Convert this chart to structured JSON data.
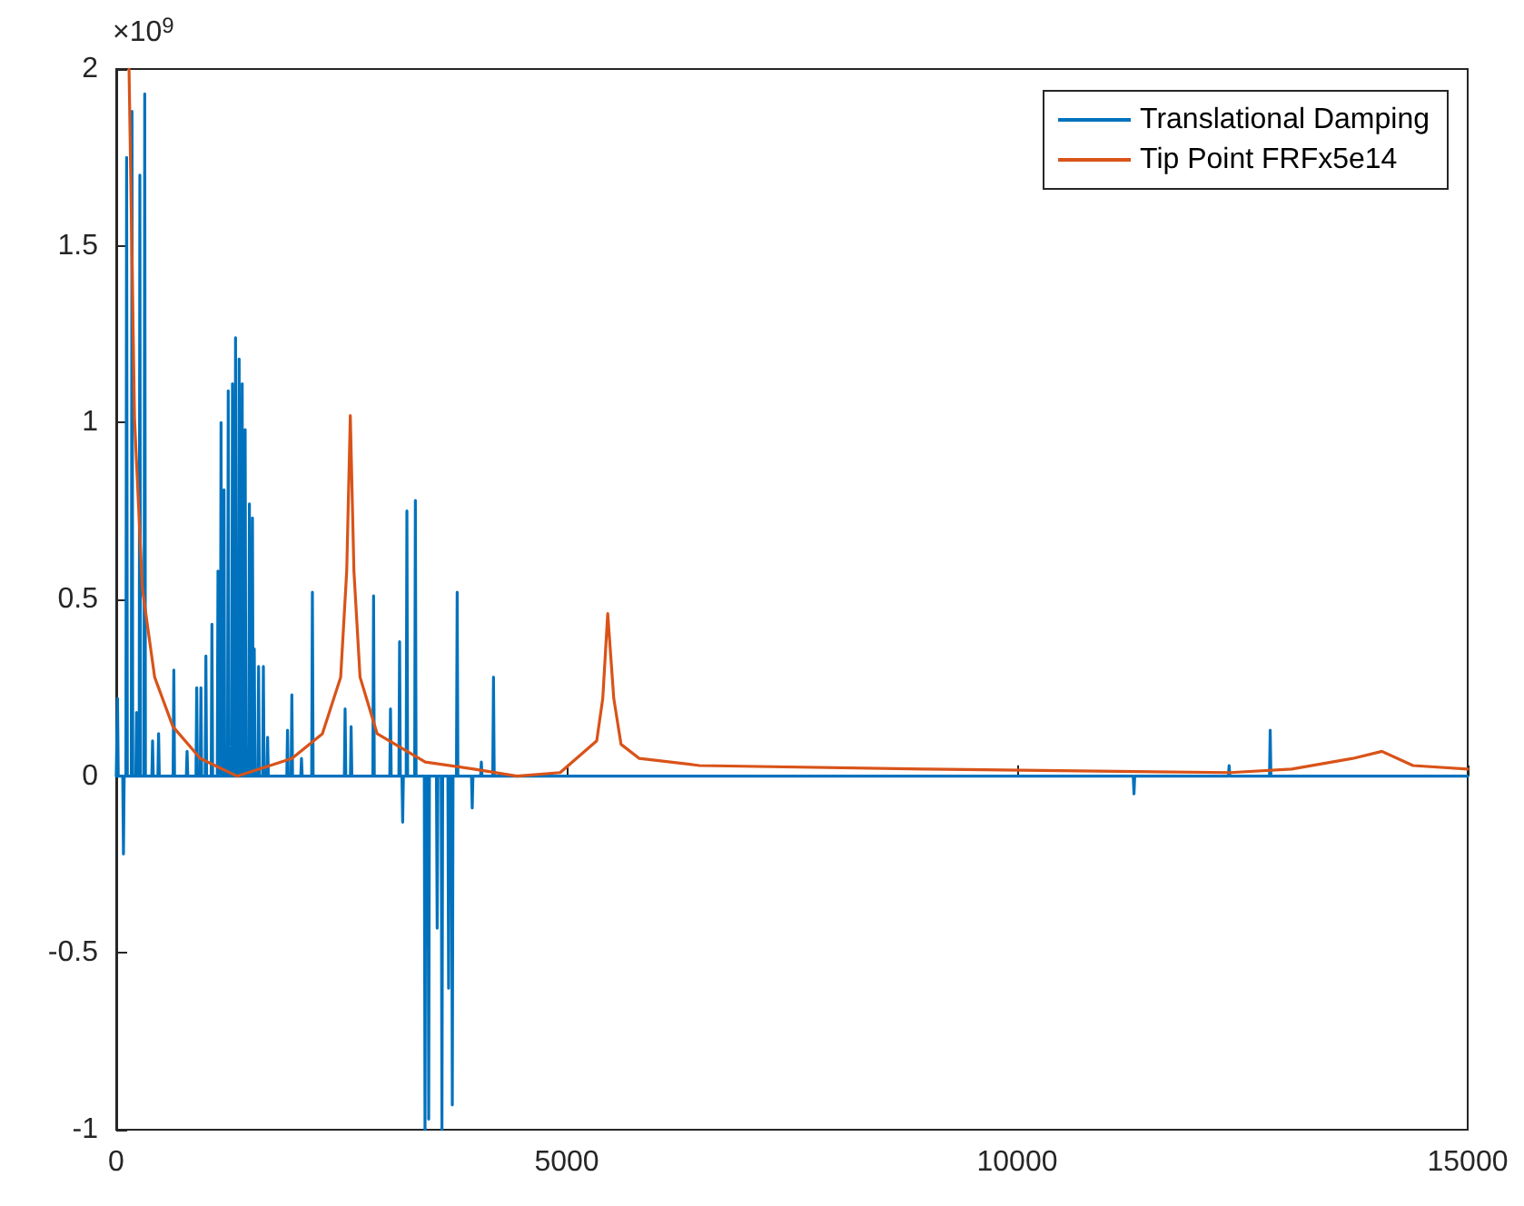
{
  "chart_data": {
    "type": "line",
    "xlim": [
      0,
      15000
    ],
    "xticks": [
      0,
      5000,
      10000,
      15000
    ],
    "ylim": [
      -1,
      2
    ],
    "yticks": [
      -1,
      -0.5,
      0,
      0.5,
      1,
      1.5,
      2
    ],
    "grid": false,
    "legend": "top right",
    "marker": "none",
    "line_style": "solid",
    "annotations": [
      "×10$^{9}$"
    ],
    "series": [
      {
        "name": "Translational Damping",
        "color": "#0072bd",
        "x": [
          0,
          6,
          14,
          22,
          72,
          80,
          88,
          107,
          115,
          123,
          167,
          175,
          183,
          217,
          225,
          233,
          254,
          262,
          270,
          308,
          316,
          324,
          395,
          403,
          411,
          462,
          470,
          478,
          631,
          639,
          647,
          778,
          786,
          794,
          885,
          893,
          901,
          932,
          940,
          948,
          987,
          995,
          1003,
          1054,
          1062,
          1070,
          1121,
          1129,
          1137,
          1155,
          1163,
          1171,
          1188,
          1196,
          1204,
          1235,
          1243,
          1251,
          1282,
          1290,
          1298,
          1316,
          1324,
          1332,
          1356,
          1364,
          1372,
          1390,
          1398,
          1406,
          1423,
          1431,
          1439,
          1470,
          1478,
          1486,
          1504,
          1512,
          1520,
          1526,
          1532,
          1540,
          1572,
          1580,
          1588,
          1625,
          1633,
          1641,
          1672,
          1680,
          1688,
          1893,
          1901,
          1909,
          1941,
          1949,
          1957,
          2048,
          2056,
          2064,
          2169,
          2177,
          2185,
          2532,
          2540,
          2548,
          2599,
          2607,
          2615,
          2848,
          2856,
          2864,
          3036,
          3044,
          3052,
          3137,
          3145,
          3153,
          3171,
          3179,
          3187,
          3218,
          3226,
          3234,
          3312,
          3320,
          3328,
          3419,
          3427,
          3435,
          3460,
          3468,
          3476,
          3554,
          3562,
          3570,
          3607,
          3615,
          3623,
          3681,
          3689,
          3697,
          3722,
          3730,
          3738,
          3776,
          3784,
          3792,
          3943,
          3951,
          3959,
          4044,
          4052,
          4060,
          4179,
          4187,
          4195,
          11288,
          11296,
          11304,
          12344,
          12352,
          12360,
          12800,
          12808,
          12816,
          15000
        ],
        "values": [
          0,
          0,
          0.22,
          0,
          0,
          -0.22,
          0,
          0,
          1.75,
          0,
          0,
          1.88,
          0,
          0,
          0.18,
          0,
          0,
          1.7,
          0,
          0,
          1.93,
          0,
          0,
          0.1,
          0,
          0,
          0.12,
          0,
          0,
          0.3,
          0,
          0,
          0.07,
          0,
          0,
          0.25,
          0,
          0,
          0.25,
          0,
          0,
          0.34,
          0,
          0,
          0.43,
          0,
          0,
          0.58,
          0,
          0,
          1.0,
          0,
          0,
          0.81,
          0,
          0,
          1.09,
          0,
          0,
          1.11,
          0,
          0,
          1.24,
          0,
          0,
          1.18,
          0,
          0,
          1.11,
          0,
          0,
          0.98,
          0,
          0,
          0.77,
          0,
          0,
          0.73,
          0,
          0,
          0.36,
          0,
          0,
          0.31,
          0,
          0,
          0.31,
          0,
          0,
          0.11,
          0,
          0,
          0.13,
          0,
          0,
          0.23,
          0,
          0,
          0.05,
          0,
          0,
          0.52,
          0,
          0,
          0.19,
          0,
          0,
          0.14,
          0,
          0,
          0.51,
          0,
          0,
          0.19,
          0,
          0,
          0.38,
          0,
          0,
          -0.13,
          0,
          0,
          0.75,
          0,
          0,
          0.78,
          0,
          0,
          -1.0,
          0,
          0,
          -0.97,
          0,
          0,
          -0.43,
          0,
          0,
          -1.0,
          0,
          0,
          -0.6,
          0,
          0,
          -0.93,
          0,
          0,
          0.52,
          0,
          0,
          -0.09,
          0,
          0,
          0.04,
          0,
          0,
          0.28,
          0,
          0,
          -0.05,
          0,
          0,
          0.03,
          0,
          0,
          0.13,
          0,
          0
        ]
      },
      {
        "name": "Tip Point FRFx5e14",
        "color": "#d95319",
        "x": [
          142,
          203,
          290,
          426,
          629,
          934,
          1340,
          1949,
          2288,
          2491,
          2558,
          2598,
          2638,
          2706,
          2896,
          3430,
          3970,
          4446,
          4927,
          5333,
          5400,
          5455,
          5522,
          5603,
          5806,
          6476,
          9000,
          12363,
          13046,
          13723,
          14048,
          14393,
          15000
        ],
        "values": [
          2.0,
          1.01,
          0.53,
          0.28,
          0.14,
          0.05,
          0.0,
          0.05,
          0.12,
          0.28,
          0.58,
          1.02,
          0.58,
          0.28,
          0.12,
          0.04,
          0.02,
          0.0,
          0.01,
          0.1,
          0.22,
          0.46,
          0.22,
          0.09,
          0.05,
          0.03,
          0.02,
          0.01,
          0.02,
          0.05,
          0.07,
          0.03,
          0.02
        ]
      }
    ]
  }
}
